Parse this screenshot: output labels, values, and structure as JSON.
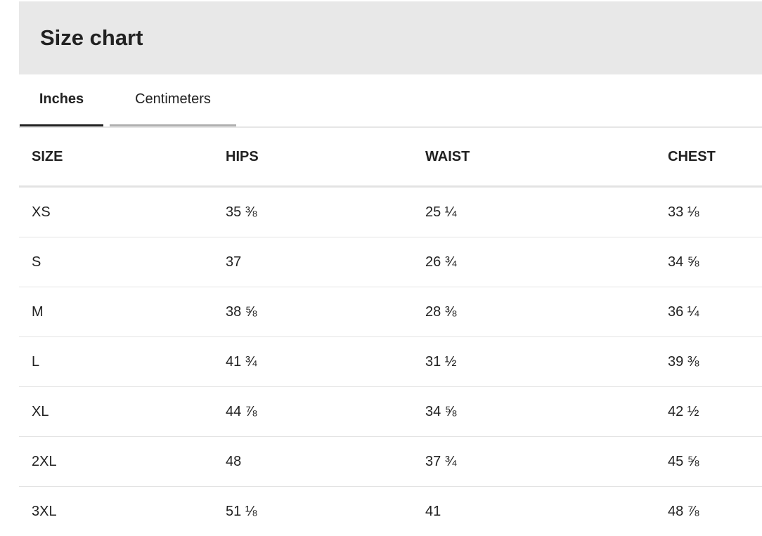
{
  "title": "Size chart",
  "tabs": [
    {
      "label": "Inches",
      "active": true
    },
    {
      "label": "Centimeters",
      "active": false
    }
  ],
  "table": {
    "headers": [
      "SIZE",
      "HIPS",
      "WAIST",
      "CHEST"
    ],
    "rows": [
      [
        "XS",
        "35 ⅜",
        "25 ¼",
        "33 ⅛"
      ],
      [
        "S",
        "37",
        "26 ¾",
        "34 ⅝"
      ],
      [
        "M",
        "38 ⅝",
        "28 ⅜",
        "36 ¼"
      ],
      [
        "L",
        "41 ¾",
        "31 ½",
        "39 ⅜"
      ],
      [
        "XL",
        "44 ⅞",
        "34 ⅝",
        "42 ½"
      ],
      [
        "2XL",
        "48",
        "37 ¾",
        "45 ⅝"
      ],
      [
        "3XL",
        "51 ⅛",
        "41",
        "48 ⅞"
      ]
    ]
  }
}
